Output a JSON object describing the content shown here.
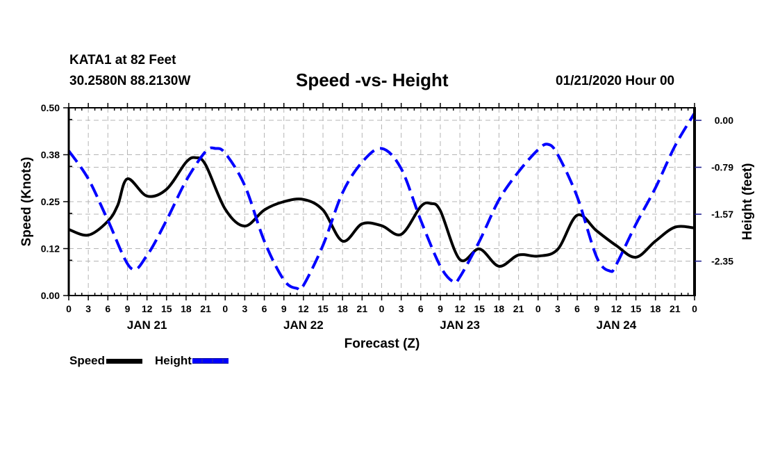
{
  "header": {
    "station": "KATA1 at 82 Feet",
    "coordinates": "30.2580N 88.2130W",
    "title": "Speed -vs- Height",
    "timestamp": "01/21/2020 Hour 00"
  },
  "legend": {
    "items": [
      {
        "label": "Speed",
        "style": "solid",
        "color": "#000000"
      },
      {
        "label": "Height",
        "style": "dashed",
        "color": "#0000ff"
      }
    ]
  },
  "chart_data": {
    "type": "line",
    "title": "Speed -vs- Height",
    "xlabel": "Forecast (Z)",
    "ylabel": "Speed (Knots)",
    "y2label": "Height (feet)",
    "x_unit": "hours since 01/21/2020 00Z",
    "xlim": [
      0,
      96
    ],
    "ylim": [
      0,
      0.5
    ],
    "y2lim": [
      -2.93,
      0.21
    ],
    "grid": true,
    "legend_position": "bottom-left",
    "x_tick_labels": [
      "0",
      "3",
      "6",
      "9",
      "12",
      "15",
      "18",
      "21",
      "0",
      "3",
      "6",
      "9",
      "12",
      "15",
      "18",
      "21",
      "0",
      "3",
      "6",
      "9",
      "12",
      "15",
      "18",
      "21",
      "0",
      "3",
      "6",
      "9",
      "12",
      "15",
      "18",
      "21",
      "0"
    ],
    "x_day_labels": [
      {
        "label": "JAN 21",
        "center_hour": 12
      },
      {
        "label": "JAN 22",
        "center_hour": 36
      },
      {
        "label": "JAN 23",
        "center_hour": 60
      },
      {
        "label": "JAN 24",
        "center_hour": 84
      }
    ],
    "y_tick_labels": [
      "0.00",
      "0.12",
      "0.25",
      "0.38",
      "0.50"
    ],
    "y_ticks": [
      0,
      0.125,
      0.25,
      0.375,
      0.5
    ],
    "y2_tick_labels": [
      "0.00",
      "-0.79",
      "-1.57",
      "-2.35"
    ],
    "y2_ticks": [
      0,
      -0.785,
      -1.57,
      -2.355
    ],
    "series": [
      {
        "name": "Speed",
        "axis": "left",
        "color": "#000000",
        "style": "solid",
        "x": [
          0,
          3,
          6,
          7.5,
          9,
          12,
          15,
          18,
          19.5,
          21,
          24,
          27,
          30,
          33,
          36,
          39,
          42,
          45,
          48,
          51,
          54,
          55.5,
          57,
          60,
          63,
          66,
          69,
          72,
          75,
          78,
          81,
          84,
          87,
          90,
          93,
          96
        ],
        "values": [
          0.176,
          0.161,
          0.198,
          0.24,
          0.311,
          0.265,
          0.283,
          0.355,
          0.367,
          0.348,
          0.23,
          0.185,
          0.228,
          0.25,
          0.256,
          0.228,
          0.145,
          0.191,
          0.186,
          0.163,
          0.237,
          0.245,
          0.226,
          0.096,
          0.124,
          0.078,
          0.108,
          0.105,
          0.123,
          0.214,
          0.172,
          0.133,
          0.102,
          0.145,
          0.182,
          0.18
        ]
      },
      {
        "name": "Height",
        "axis": "right",
        "color": "#0000ff",
        "style": "dashed",
        "x": [
          0,
          3,
          6,
          9.5,
          12,
          15,
          18,
          21,
          22.5,
          24,
          27,
          30,
          33,
          35,
          36,
          39,
          42,
          45,
          48,
          51,
          54,
          57,
          59,
          60,
          63,
          66,
          69,
          72,
          73.5,
          75,
          78,
          81,
          83,
          84,
          87,
          90,
          93,
          96
        ],
        "values": [
          -0.51,
          -0.98,
          -1.67,
          -2.47,
          -2.26,
          -1.67,
          -1.01,
          -0.52,
          -0.47,
          -0.55,
          -1.09,
          -2.02,
          -2.67,
          -2.81,
          -2.76,
          -2.09,
          -1.21,
          -0.7,
          -0.47,
          -0.81,
          -1.67,
          -2.44,
          -2.7,
          -2.62,
          -2.02,
          -1.33,
          -0.86,
          -0.49,
          -0.4,
          -0.57,
          -1.28,
          -2.29,
          -2.52,
          -2.41,
          -1.74,
          -1.13,
          -0.43,
          0.12
        ]
      }
    ]
  }
}
